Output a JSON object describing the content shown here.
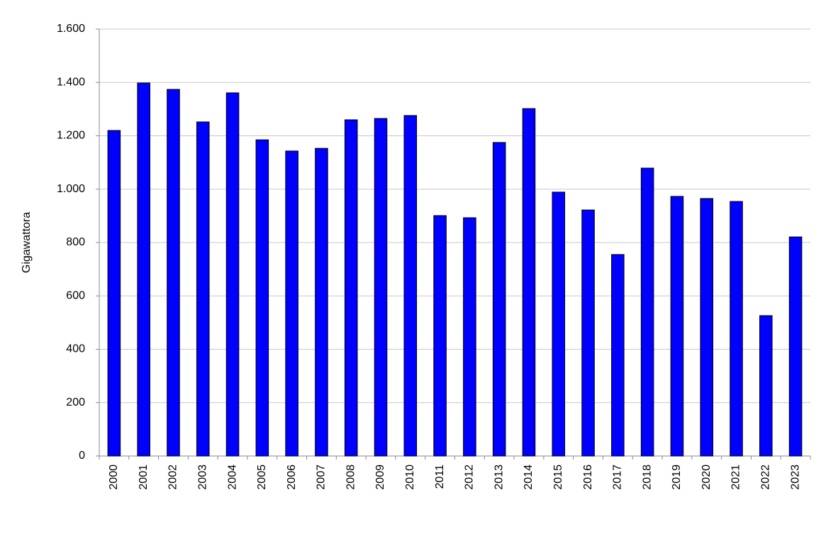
{
  "chart_data": {
    "type": "bar",
    "y_label": "Gigawattora",
    "categories": [
      "2000",
      "2001",
      "2002",
      "2003",
      "2004",
      "2005",
      "2006",
      "2007",
      "2008",
      "2009",
      "2010",
      "2011",
      "2012",
      "2013",
      "2014",
      "2015",
      "2016",
      "2017",
      "2018",
      "2019",
      "2020",
      "2021",
      "2022",
      "2023"
    ],
    "values": [
      1220,
      1398,
      1374,
      1252,
      1361,
      1185,
      1143,
      1153,
      1260,
      1265,
      1276,
      901,
      893,
      1175,
      1302,
      989,
      922,
      755,
      1079,
      973,
      965,
      954,
      526,
      821
    ],
    "color": "#0000ff",
    "ylim": [
      0,
      1600
    ],
    "yticks": [
      0,
      200,
      400,
      600,
      800,
      {
        "value": 1000,
        "label": "1.000"
      },
      {
        "value": 1200,
        "label": "1.200"
      },
      {
        "value": 1400,
        "label": "1.400"
      },
      {
        "value": 1600,
        "label": "1.600"
      }
    ],
    "grid": true
  }
}
